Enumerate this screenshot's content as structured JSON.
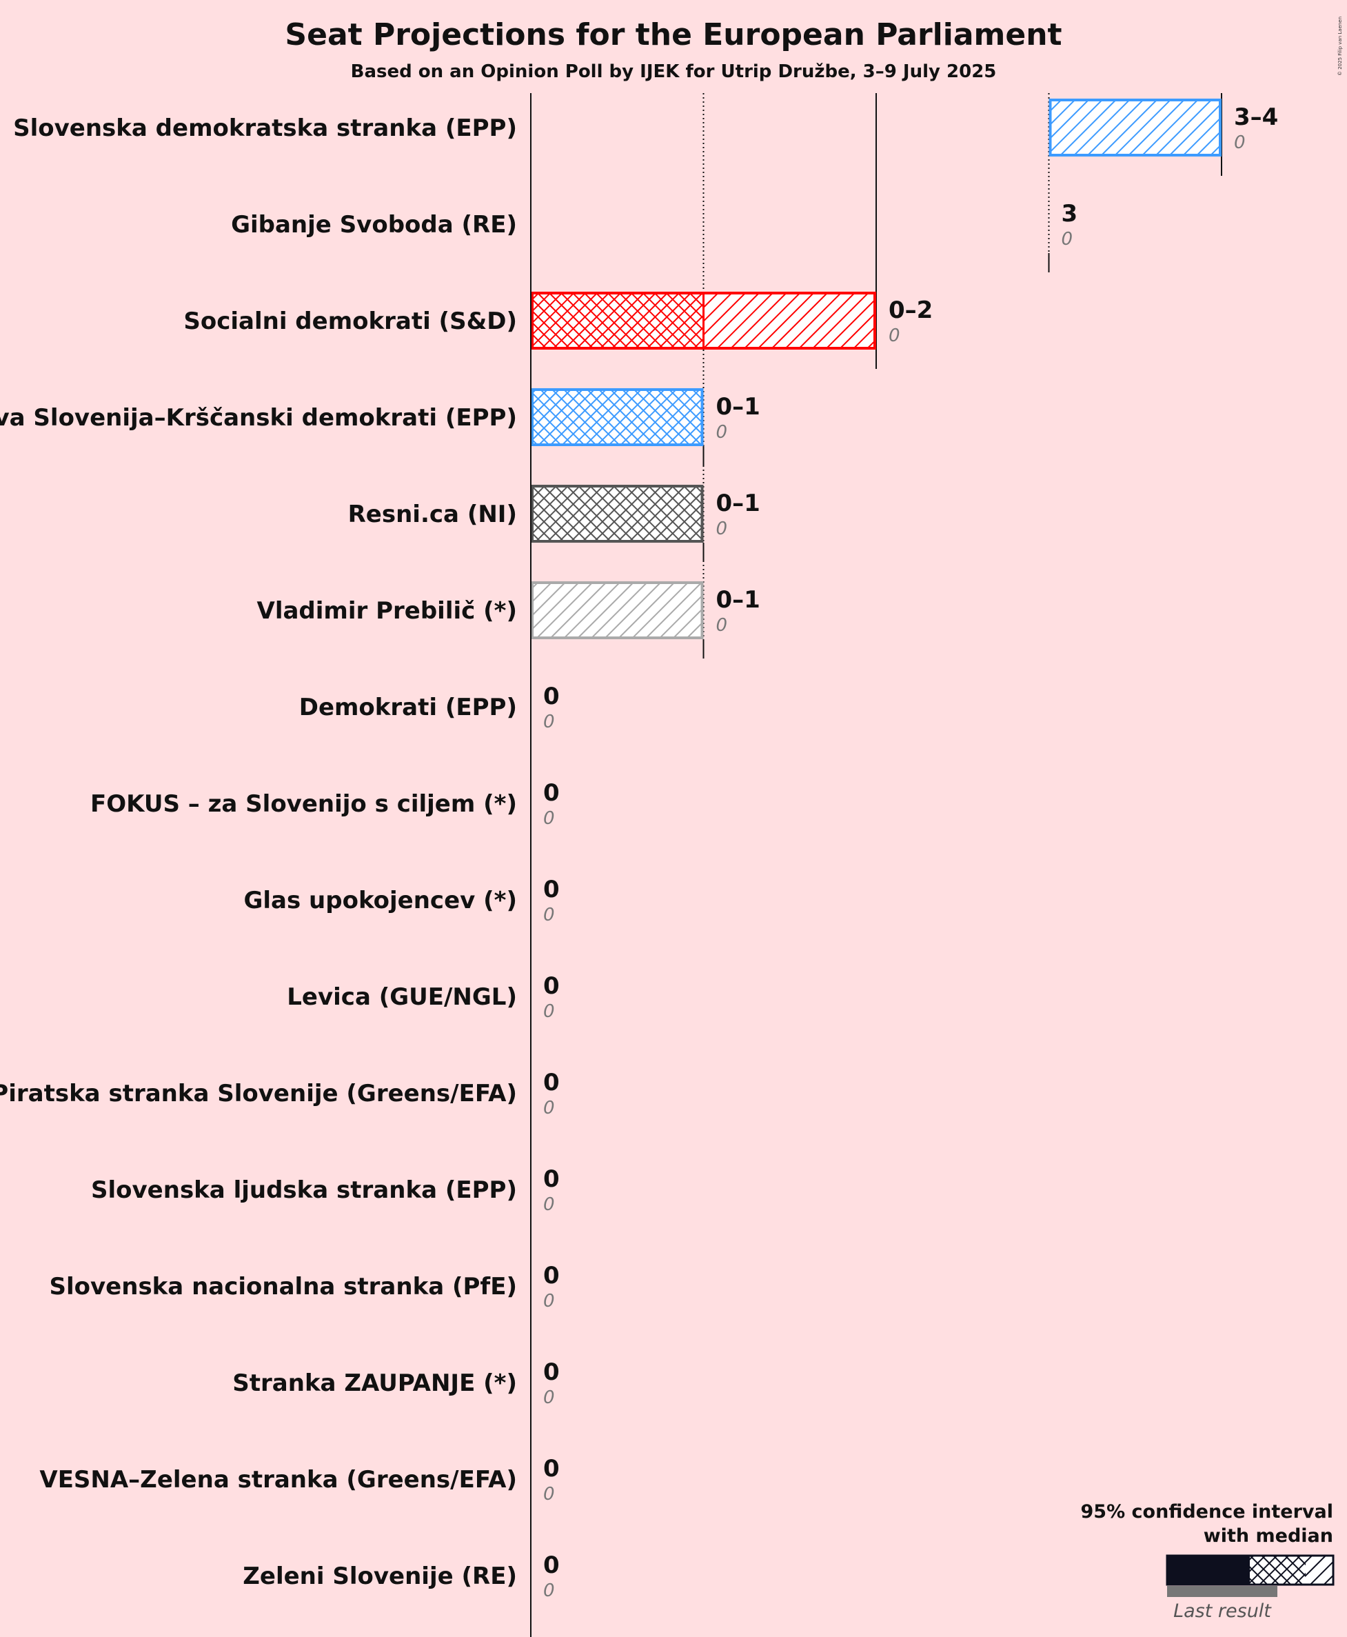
{
  "title": "Seat Projections for the European Parliament",
  "subtitle": "Based on an Opinion Poll by IJEK for Utrip Družbe, 3–9 July 2025",
  "copyright": "© 2025 Filip van Laenen",
  "legend": {
    "line1": "95% confidence interval",
    "line2": "with median",
    "last_result": "Last result"
  },
  "chart_data": {
    "type": "bar",
    "title": "Seat Projections for the European Parliament",
    "subtitle": "Based on an Opinion Poll by IJEK for Utrip Družbe, 3–9 July 2025",
    "xlim": [
      0,
      4
    ],
    "gridlines": [
      1,
      2,
      3
    ],
    "parties": [
      {
        "name": "Slovenska demokratska stranka (EPP)",
        "low": 3,
        "median": 3,
        "high": 4,
        "range_label": "3–4",
        "last_result": 0,
        "last_label": "0",
        "color": "#3d9bff"
      },
      {
        "name": "Gibanje Svoboda (RE)",
        "low": 3,
        "median": 3,
        "high": 3,
        "range_label": "3",
        "last_result": 0,
        "last_label": "0",
        "color": "#ffd700"
      },
      {
        "name": "Socialni demokrati (S&D)",
        "low": 0,
        "median": 1,
        "high": 2,
        "range_label": "0–2",
        "last_result": 0,
        "last_label": "0",
        "color": "#ff0000"
      },
      {
        "name": "Nova Slovenija–Krščanski demokrati (EPP)",
        "low": 0,
        "median": 1,
        "high": 1,
        "range_label": "0–1",
        "last_result": 0,
        "last_label": "0",
        "color": "#3d9bff"
      },
      {
        "name": "Resni.ca (NI)",
        "low": 0,
        "median": 1,
        "high": 1,
        "range_label": "0–1",
        "last_result": 0,
        "last_label": "0",
        "color": "#555555"
      },
      {
        "name": "Vladimir Prebilič (*)",
        "low": 0,
        "median": 0,
        "high": 1,
        "range_label": "0–1",
        "last_result": 0,
        "last_label": "0",
        "color": "#aaaaaa"
      },
      {
        "name": "Demokrati (EPP)",
        "low": 0,
        "median": 0,
        "high": 0,
        "range_label": "0",
        "last_result": 0,
        "last_label": "0",
        "color": "#3d9bff"
      },
      {
        "name": "FOKUS – za Slovenijo s ciljem (*)",
        "low": 0,
        "median": 0,
        "high": 0,
        "range_label": "0",
        "last_result": 0,
        "last_label": "0",
        "color": "#aaaaaa"
      },
      {
        "name": "Glas upokojencev (*)",
        "low": 0,
        "median": 0,
        "high": 0,
        "range_label": "0",
        "last_result": 0,
        "last_label": "0",
        "color": "#aaaaaa"
      },
      {
        "name": "Levica (GUE/NGL)",
        "low": 0,
        "median": 0,
        "high": 0,
        "range_label": "0",
        "last_result": 0,
        "last_label": "0",
        "color": "#aa0000"
      },
      {
        "name": "Piratska stranka Slovenije (Greens/EFA)",
        "low": 0,
        "median": 0,
        "high": 0,
        "range_label": "0",
        "last_result": 0,
        "last_label": "0",
        "color": "#333333"
      },
      {
        "name": "Slovenska ljudska stranka (EPP)",
        "low": 0,
        "median": 0,
        "high": 0,
        "range_label": "0",
        "last_result": 0,
        "last_label": "0",
        "color": "#3d9bff"
      },
      {
        "name": "Slovenska nacionalna stranka (PfE)",
        "low": 0,
        "median": 0,
        "high": 0,
        "range_label": "0",
        "last_result": 0,
        "last_label": "0",
        "color": "#202060"
      },
      {
        "name": "Stranka ZAUPANJE (*)",
        "low": 0,
        "median": 0,
        "high": 0,
        "range_label": "0",
        "last_result": 0,
        "last_label": "0",
        "color": "#aaaaaa"
      },
      {
        "name": "VESNA–Zelena stranka (Greens/EFA)",
        "low": 0,
        "median": 0,
        "high": 0,
        "range_label": "0",
        "last_result": 0,
        "last_label": "0",
        "color": "#33aa33"
      },
      {
        "name": "Zeleni Slovenije (RE)",
        "low": 0,
        "median": 0,
        "high": 0,
        "range_label": "0",
        "last_result": 0,
        "last_label": "0",
        "color": "#33aa33"
      }
    ]
  }
}
